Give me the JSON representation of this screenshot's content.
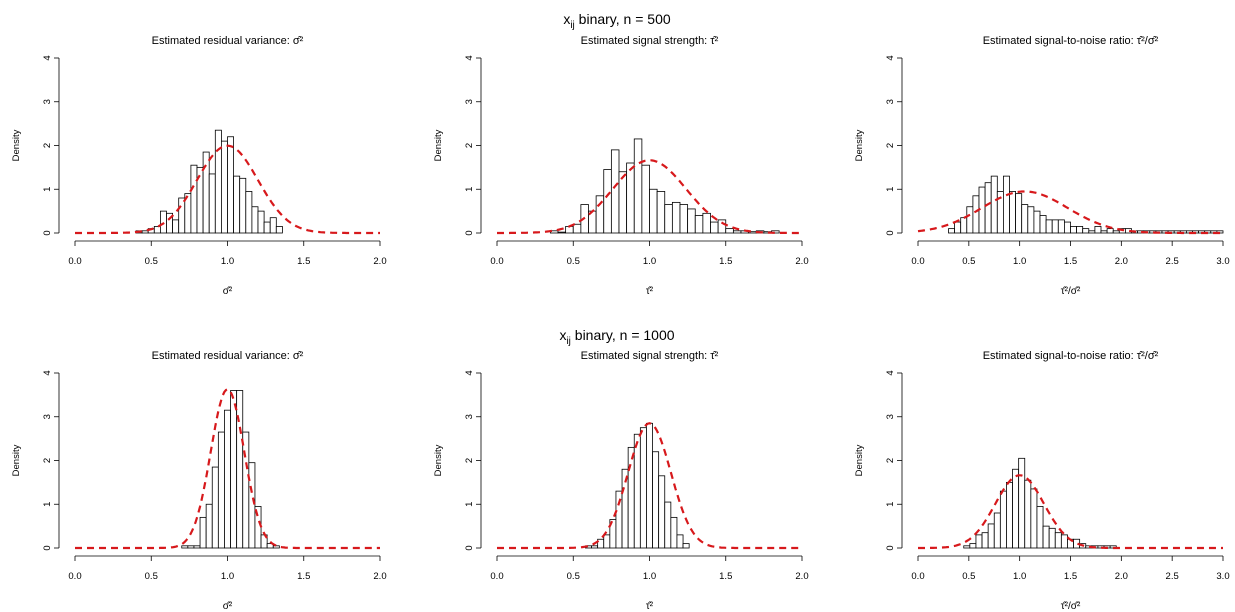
{
  "row_titles": [
    {
      "base": "x",
      "sub": "ij",
      "rest": " binary, n = 500"
    },
    {
      "base": "x",
      "sub": "ij",
      "rest": " binary, n = 1000"
    }
  ],
  "ylabel": "Density",
  "colors": {
    "bars_fill": "#ffffff",
    "bars_stroke": "#000000",
    "density_curve": "#d7191c"
  },
  "chart_data": [
    {
      "type": "bar",
      "histogram": true,
      "title": "Estimated residual variance: σ̂²",
      "xlabel": "σ̂²",
      "ylabel": "Density",
      "xlim": [
        0,
        2
      ],
      "ylim": [
        0,
        4
      ],
      "xticks": [
        0,
        0.5,
        1,
        1.5,
        2
      ],
      "xtick_labels": [
        "0.0",
        "0.5",
        "1.0",
        "1.5",
        "2.0"
      ],
      "yticks": [
        0,
        1,
        2,
        3,
        4
      ],
      "ytick_labels": [
        "0",
        "1",
        "2",
        "3",
        "4"
      ],
      "bin_start": 0.4,
      "bin_width": 0.04,
      "values": [
        0.05,
        0.05,
        0.1,
        0.15,
        0.5,
        0.45,
        0.3,
        0.8,
        0.9,
        1.55,
        1.5,
        1.85,
        1.35,
        2.35,
        2.1,
        2.2,
        1.3,
        1.25,
        0.95,
        0.6,
        0.5,
        0.25,
        0.35,
        0.15
      ],
      "density": {
        "dist": "normal",
        "mean": 1.0,
        "sd": 0.2,
        "dashed": true
      }
    },
    {
      "type": "bar",
      "histogram": true,
      "title": "Estimated signal strength: τ̂²",
      "xlabel": "τ̂²",
      "ylabel": "Density",
      "xlim": [
        0,
        2
      ],
      "ylim": [
        0,
        4
      ],
      "xticks": [
        0,
        0.5,
        1,
        1.5,
        2
      ],
      "xtick_labels": [
        "0.0",
        "0.5",
        "1.0",
        "1.5",
        "2.0"
      ],
      "yticks": [
        0,
        1,
        2,
        3,
        4
      ],
      "ytick_labels": [
        "0",
        "1",
        "2",
        "3",
        "4"
      ],
      "bin_start": 0.35,
      "bin_width": 0.05,
      "values": [
        0.05,
        0.02,
        0.15,
        0.2,
        0.65,
        0.5,
        0.85,
        1.45,
        1.9,
        1.4,
        1.6,
        2.15,
        1.55,
        1.0,
        0.95,
        0.65,
        0.7,
        0.65,
        0.55,
        0.4,
        0.45,
        0.25,
        0.3,
        0.1,
        0.05,
        0.05,
        0.03,
        0.05,
        0.03,
        0.05
      ],
      "density": {
        "dist": "normal",
        "mean": 1.0,
        "sd": 0.24,
        "dashed": true
      }
    },
    {
      "type": "bar",
      "histogram": true,
      "title": "Estimated signal-to-noise ratio: τ̂²/σ̂²",
      "xlabel": "τ̂²/σ̂²",
      "ylabel": "Density",
      "xlim": [
        0,
        3
      ],
      "ylim": [
        0,
        4
      ],
      "xticks": [
        0,
        0.5,
        1,
        1.5,
        2,
        2.5,
        3
      ],
      "xtick_labels": [
        "0.0",
        "0.5",
        "1.0",
        "1.5",
        "2.0",
        "2.5",
        "3.0"
      ],
      "yticks": [
        0,
        1,
        2,
        3,
        4
      ],
      "ytick_labels": [
        "0",
        "1",
        "2",
        "3",
        "4"
      ],
      "bin_start": 0.3,
      "bin_width": 0.06,
      "values": [
        0.1,
        0.25,
        0.35,
        0.6,
        0.85,
        1.05,
        1.15,
        1.3,
        0.95,
        1.3,
        0.95,
        0.9,
        0.65,
        0.6,
        0.5,
        0.4,
        0.3,
        0.3,
        0.3,
        0.25,
        0.15,
        0.15,
        0.1,
        0.05,
        0.15,
        0.05,
        0.1,
        0.05,
        0.1,
        0.1,
        0.05,
        0.05,
        0.05,
        0.05,
        0.05,
        0.05,
        0.05,
        0.05,
        0.05,
        0.05,
        0.05,
        0.05,
        0.05,
        0.05,
        0.05
      ],
      "density": {
        "dist": "normal",
        "mean": 1.05,
        "sd": 0.42,
        "dashed": true
      }
    },
    {
      "type": "bar",
      "histogram": true,
      "title": "Estimated residual variance: σ̂²",
      "xlabel": "σ̂²",
      "ylabel": "Density",
      "xlim": [
        0,
        2
      ],
      "ylim": [
        0,
        4
      ],
      "xticks": [
        0,
        0.5,
        1,
        1.5,
        2
      ],
      "xtick_labels": [
        "0.0",
        "0.5",
        "1.0",
        "1.5",
        "2.0"
      ],
      "yticks": [
        0,
        1,
        2,
        3,
        4
      ],
      "ytick_labels": [
        "0",
        "1",
        "2",
        "3",
        "4"
      ],
      "bin_start": 0.7,
      "bin_width": 0.04,
      "values": [
        0.05,
        0.05,
        0.05,
        0.7,
        1.0,
        1.85,
        2.65,
        3.15,
        3.6,
        3.6,
        2.65,
        1.95,
        0.95,
        0.3,
        0.1,
        0.05
      ],
      "density": {
        "dist": "normal",
        "mean": 1.0,
        "sd": 0.11,
        "dashed": true
      }
    },
    {
      "type": "bar",
      "histogram": true,
      "title": "Estimated signal strength: τ̂²",
      "xlabel": "τ̂²",
      "ylabel": "Density",
      "xlim": [
        0,
        2
      ],
      "ylim": [
        0,
        4
      ],
      "xticks": [
        0,
        0.5,
        1,
        1.5,
        2
      ],
      "xtick_labels": [
        "0.0",
        "0.5",
        "1.0",
        "1.5",
        "2.0"
      ],
      "yticks": [
        0,
        1,
        2,
        3,
        4
      ],
      "ytick_labels": [
        "0",
        "1",
        "2",
        "3",
        "4"
      ],
      "bin_start": 0.58,
      "bin_width": 0.04,
      "values": [
        0.05,
        0.05,
        0.2,
        0.3,
        0.65,
        1.3,
        1.8,
        2.3,
        2.6,
        2.75,
        2.85,
        2.2,
        1.65,
        1.05,
        0.7,
        0.3,
        0.1
      ],
      "density": {
        "dist": "normal",
        "mean": 1.0,
        "sd": 0.14,
        "dashed": true
      }
    },
    {
      "type": "bar",
      "histogram": true,
      "title": "Estimated signal-to-noise ratio: τ̂²/σ̂²",
      "xlabel": "τ̂²/σ̂²",
      "ylabel": "Density",
      "xlim": [
        0,
        3
      ],
      "ylim": [
        0,
        4
      ],
      "xticks": [
        0,
        0.5,
        1,
        1.5,
        2,
        2.5,
        3
      ],
      "xtick_labels": [
        "0.0",
        "0.5",
        "1.0",
        "1.5",
        "2.0",
        "2.5",
        "3.0"
      ],
      "yticks": [
        0,
        1,
        2,
        3,
        4
      ],
      "ytick_labels": [
        "0",
        "1",
        "2",
        "3",
        "4"
      ],
      "bin_start": 0.45,
      "bin_width": 0.06,
      "values": [
        0.05,
        0.1,
        0.3,
        0.35,
        0.55,
        0.8,
        1.3,
        1.5,
        1.8,
        2.05,
        1.55,
        1.35,
        0.95,
        0.5,
        0.45,
        0.35,
        0.3,
        0.2,
        0.2,
        0.1,
        0.05,
        0.05,
        0.05,
        0.05,
        0.05
      ],
      "density": {
        "dist": "normal",
        "mean": 1.0,
        "sd": 0.24,
        "dashed": true
      }
    }
  ]
}
